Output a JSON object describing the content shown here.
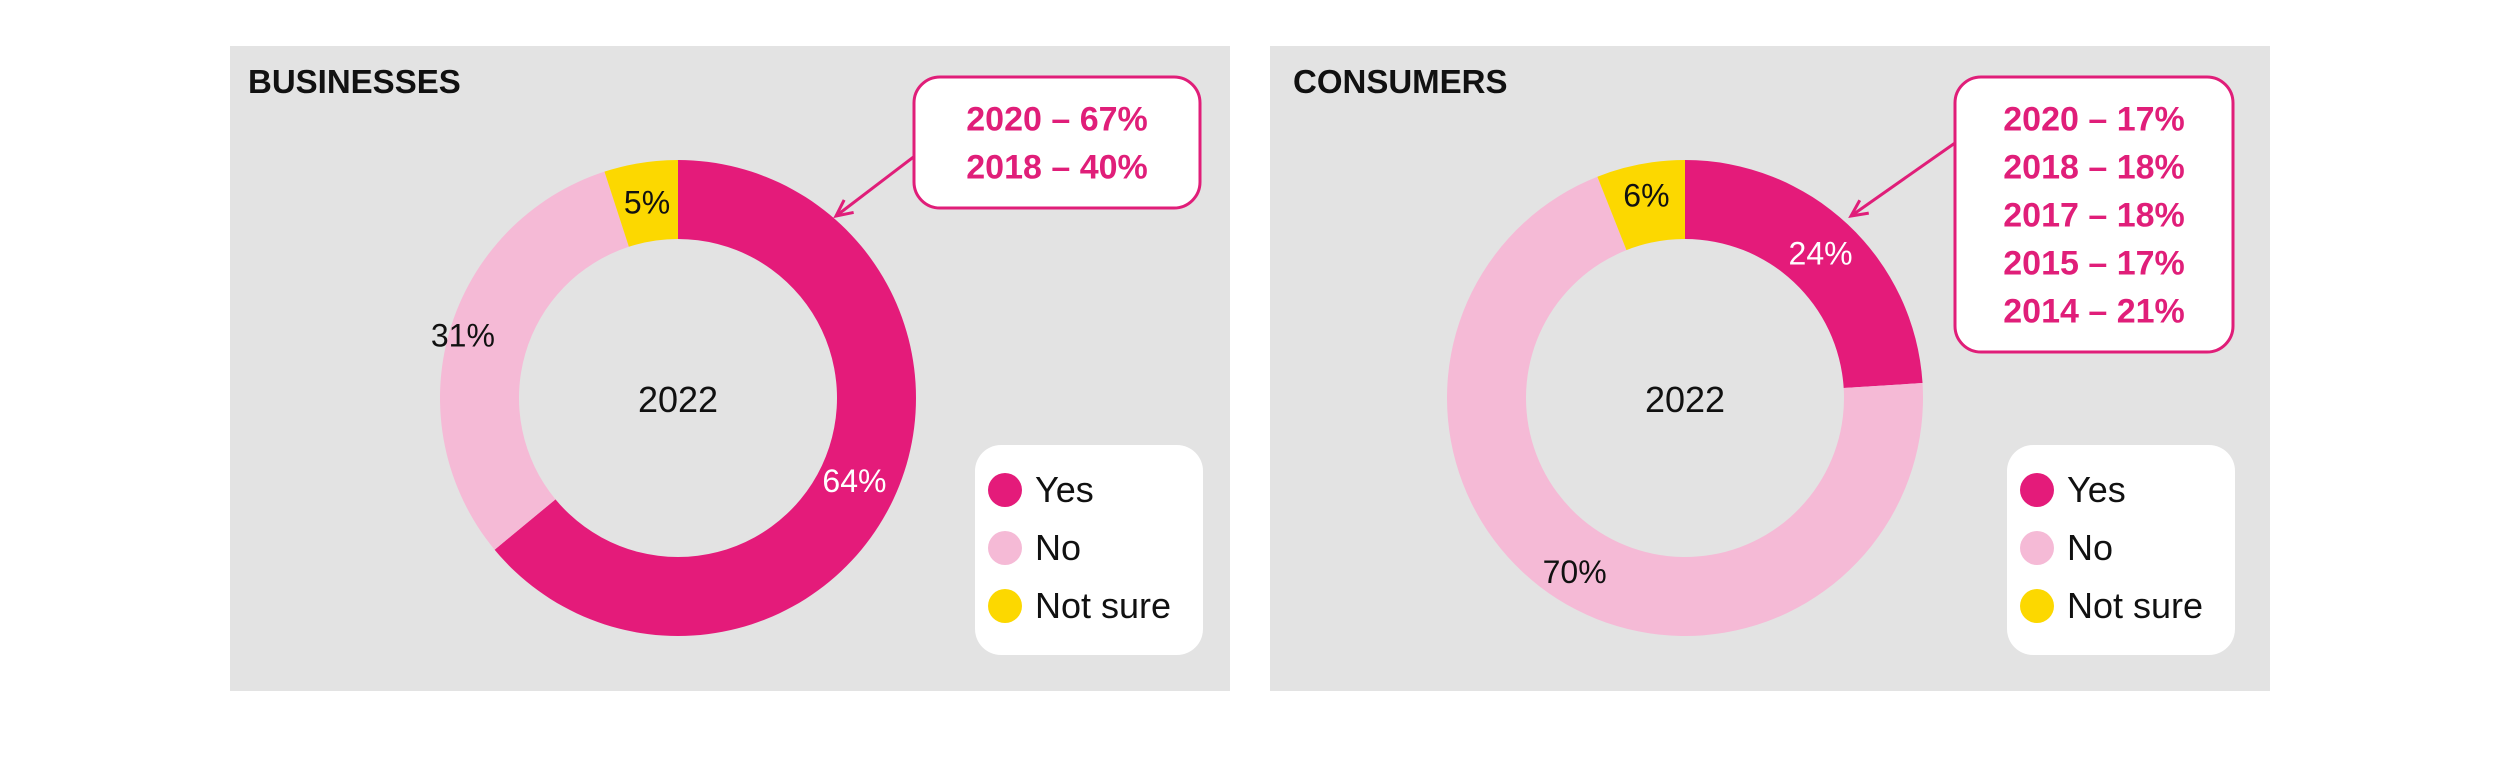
{
  "palette": {
    "yes": "#e41b7a",
    "no": "#f5bad6",
    "not_sure": "#fcd800",
    "panel_bg": "#e3e3e3",
    "callout_border": "#e01e79",
    "callout_text": "#e01e79"
  },
  "legend": [
    {
      "label": "Yes",
      "color": "#e41b7a"
    },
    {
      "label": "No",
      "color": "#f5bad6"
    },
    {
      "label": "Not sure",
      "color": "#fcd800"
    }
  ],
  "chart_data": [
    {
      "type": "pie",
      "title": "BUSINESSES",
      "center_label": "2022",
      "categories": [
        "Yes",
        "No",
        "Not sure"
      ],
      "values": [
        64,
        31,
        5
      ],
      "value_labels": [
        "64%",
        "31%",
        "5%"
      ],
      "callout_points_to": "Yes",
      "callout": [
        "2020 – 67%",
        "2018 – 40%"
      ],
      "legend_position": "bottom-right"
    },
    {
      "type": "pie",
      "title": "CONSUMERS",
      "center_label": "2022",
      "categories": [
        "Yes",
        "No",
        "Not sure"
      ],
      "values": [
        24,
        70,
        6
      ],
      "value_labels": [
        "24%",
        "70%",
        "6%"
      ],
      "callout_points_to": "Yes",
      "callout": [
        "2020 – 17%",
        "2018 – 18%",
        "2017 – 18%",
        "2015 – 17%",
        "2014 – 21%"
      ],
      "legend_position": "bottom-right"
    }
  ]
}
